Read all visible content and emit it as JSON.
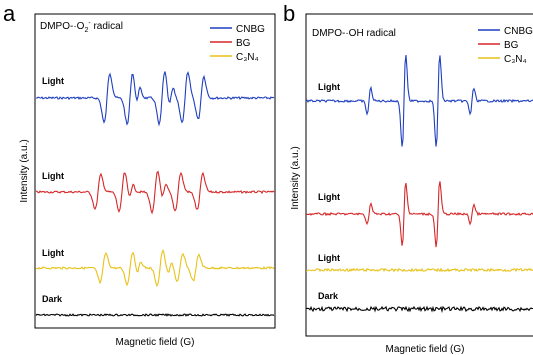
{
  "chart_data": [
    {
      "type": "line",
      "panel": "a",
      "title": "DMPO-·O₂⁻ radical",
      "title_main": "DMPO-·O",
      "title_sub": "2",
      "title_sup": "-",
      "title_tail": " radical",
      "xlabel": "Magnetic field (G)",
      "ylabel": "Intensity (a.u.)",
      "grid": false,
      "legend_position": "top-right",
      "series": [
        {
          "name": "CNBG",
          "label": "Light",
          "color": "#1f3fbf"
        },
        {
          "name": "BG",
          "label": "Light",
          "color": "#d62728"
        },
        {
          "name": "C₃N₄",
          "label": "Light",
          "color": "#e8c21a"
        },
        {
          "label": "Dark",
          "color": "#000000"
        }
      ]
    },
    {
      "type": "line",
      "panel": "b",
      "title": "DMPO-·OH radical",
      "xlabel": "Magnetic field (G)",
      "ylabel": "Intensity (a.u.)",
      "grid": false,
      "legend_position": "top-right",
      "series": [
        {
          "name": "CNBG",
          "label": "Light",
          "color": "#1f3fbf"
        },
        {
          "name": "BG",
          "label": "Light",
          "color": "#d62728"
        },
        {
          "name": "C₃N₄",
          "label": "Light",
          "color": "#e8c21a"
        },
        {
          "label": "Dark",
          "color": "#000000"
        }
      ]
    }
  ]
}
